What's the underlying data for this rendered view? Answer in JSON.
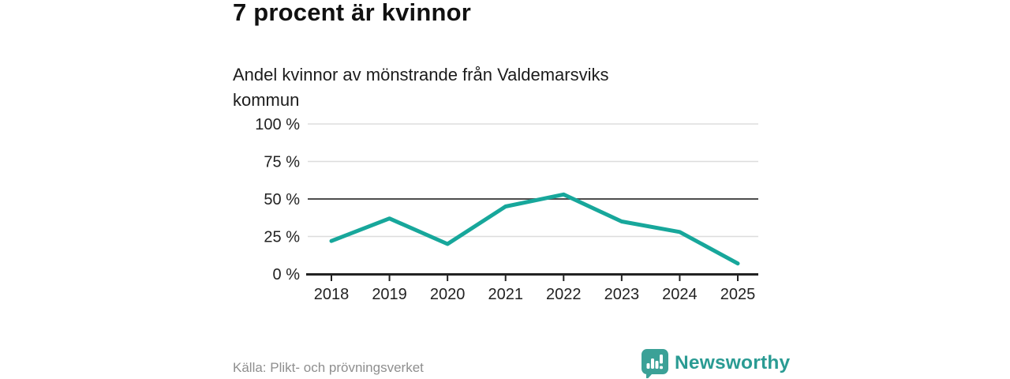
{
  "header": {
    "title": "7 procent är kvinnor",
    "subtitle": "Andel kvinnor av mönstrande från Valdemarsviks kommun"
  },
  "chart_data": {
    "type": "line",
    "title": "7 procent är kvinnor",
    "subtitle": "Andel kvinnor av mönstrande från Valdemarsviks kommun",
    "x": [
      "2018",
      "2019",
      "2020",
      "2021",
      "2022",
      "2023",
      "2024",
      "2025"
    ],
    "series": [
      {
        "name": "Andel kvinnor av mönstrande",
        "values": [
          22,
          37,
          20,
          45,
          53,
          35,
          28,
          7
        ]
      }
    ],
    "xlabel": "",
    "ylabel": "",
    "ylim": [
      0,
      100
    ],
    "y_ticks": [
      {
        "value": 100,
        "label": "100 %"
      },
      {
        "value": 75,
        "label": "75 %"
      },
      {
        "value": 50,
        "label": "50 %"
      },
      {
        "value": 25,
        "label": "25 %"
      },
      {
        "value": 0,
        "label": "0 %"
      }
    ],
    "grid": true,
    "highlight_gridline_at": 50,
    "legend": false
  },
  "footer": {
    "source": "Källa: Plikt- och prövningsverket",
    "brand": "Newsworthy"
  },
  "colors": {
    "accent_line": "#17a79b",
    "grid_light": "#dddddd",
    "grid_highlight": "#4d4d4d",
    "axis": "#222222",
    "tick_text": "#222222",
    "title_text": "#111111",
    "muted_text": "#8f8f8f",
    "logo_teal": "#2a9b93",
    "logo_icon_fill": "#3ba197"
  }
}
